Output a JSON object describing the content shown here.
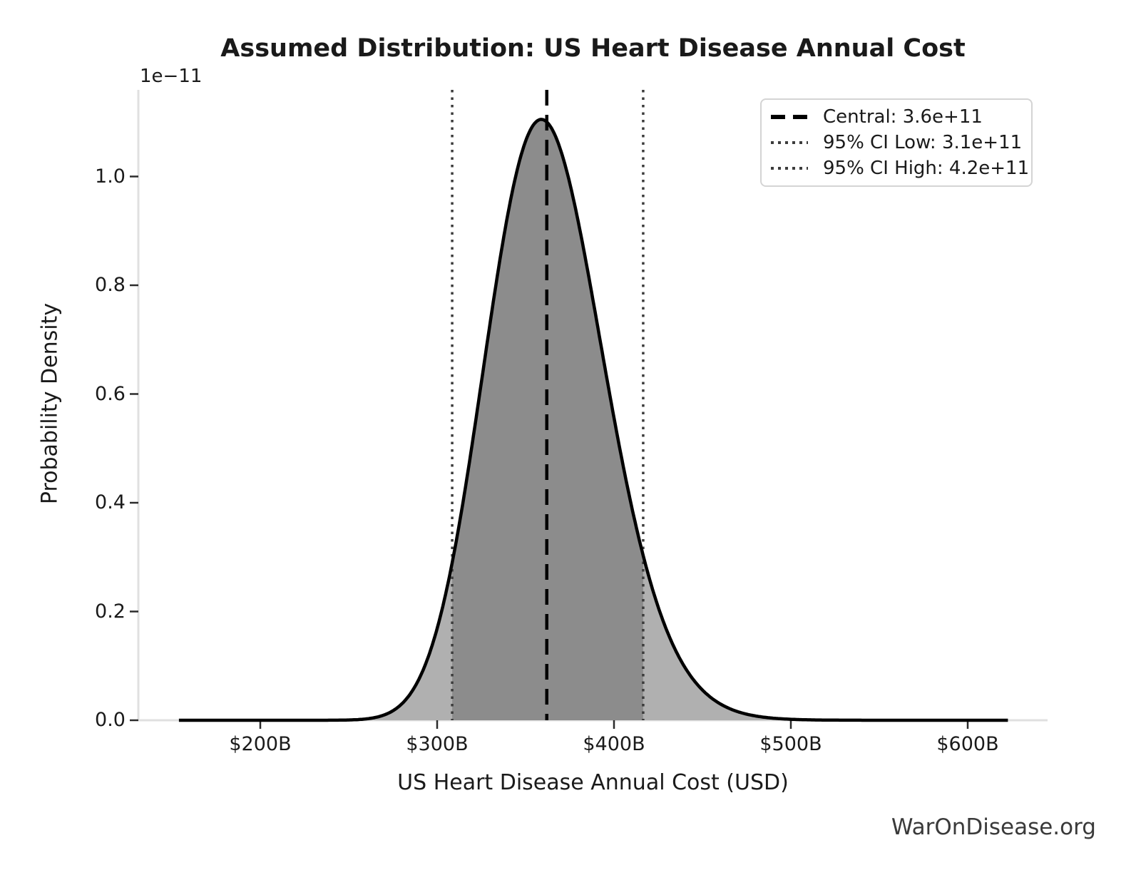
{
  "chart_data": {
    "type": "area",
    "title": "Assumed Distribution: US Heart Disease Annual Cost",
    "xlabel": "US Heart Disease Annual Cost (USD)",
    "ylabel": "Probability Density",
    "y_axis_offset_label": "1e−11",
    "grid": false,
    "x_ticks": [
      {
        "value_billions": 200,
        "label": "$200B"
      },
      {
        "value_billions": 300,
        "label": "$300B"
      },
      {
        "value_billions": 400,
        "label": "$400B"
      },
      {
        "value_billions": 500,
        "label": "$500B"
      },
      {
        "value_billions": 600,
        "label": "$600B"
      }
    ],
    "y_ticks": [
      {
        "value_e11": 0.0,
        "label": "0.0"
      },
      {
        "value_e11": 0.2,
        "label": "0.2"
      },
      {
        "value_e11": 0.4,
        "label": "0.4"
      },
      {
        "value_e11": 0.6,
        "label": "0.6"
      },
      {
        "value_e11": 0.8,
        "label": "0.8"
      },
      {
        "value_e11": 1.0,
        "label": "1.0"
      }
    ],
    "xlim_billions": [
      131,
      645
    ],
    "ylim_e11": [
      0,
      1.16
    ],
    "central_value": 360000000000.0,
    "ci_low_value": 310000000000.0,
    "ci_high_value": 420000000000.0,
    "lines": {
      "central_billions": 362,
      "ci_low_billions": 308.5,
      "ci_high_billions": 416.5
    },
    "curve": {
      "shape": "lognormal",
      "median_billions": 362,
      "sigma_log": 0.0925,
      "peak_density_e11": 1.105,
      "range_billions": [
        154,
        623
      ]
    },
    "legend": {
      "position": "upper right",
      "entries": [
        {
          "label": "Central: 3.6e+11",
          "style": "dashed"
        },
        {
          "label": "95% CI Low: 3.1e+11",
          "style": "dotted"
        },
        {
          "label": "95% CI High: 4.2e+11",
          "style": "dotted"
        }
      ]
    },
    "colors": {
      "fill_light": "#b0b0b0",
      "fill_dark": "#8c8c8c",
      "curve_line": "#000000",
      "central_line": "#000000",
      "ci_line": "#3c3c3c",
      "spine": "#e0e0e0",
      "tick_mark": "#2b2b2b",
      "text": "#1a1a1a"
    }
  },
  "watermark": "WarOnDisease.org"
}
